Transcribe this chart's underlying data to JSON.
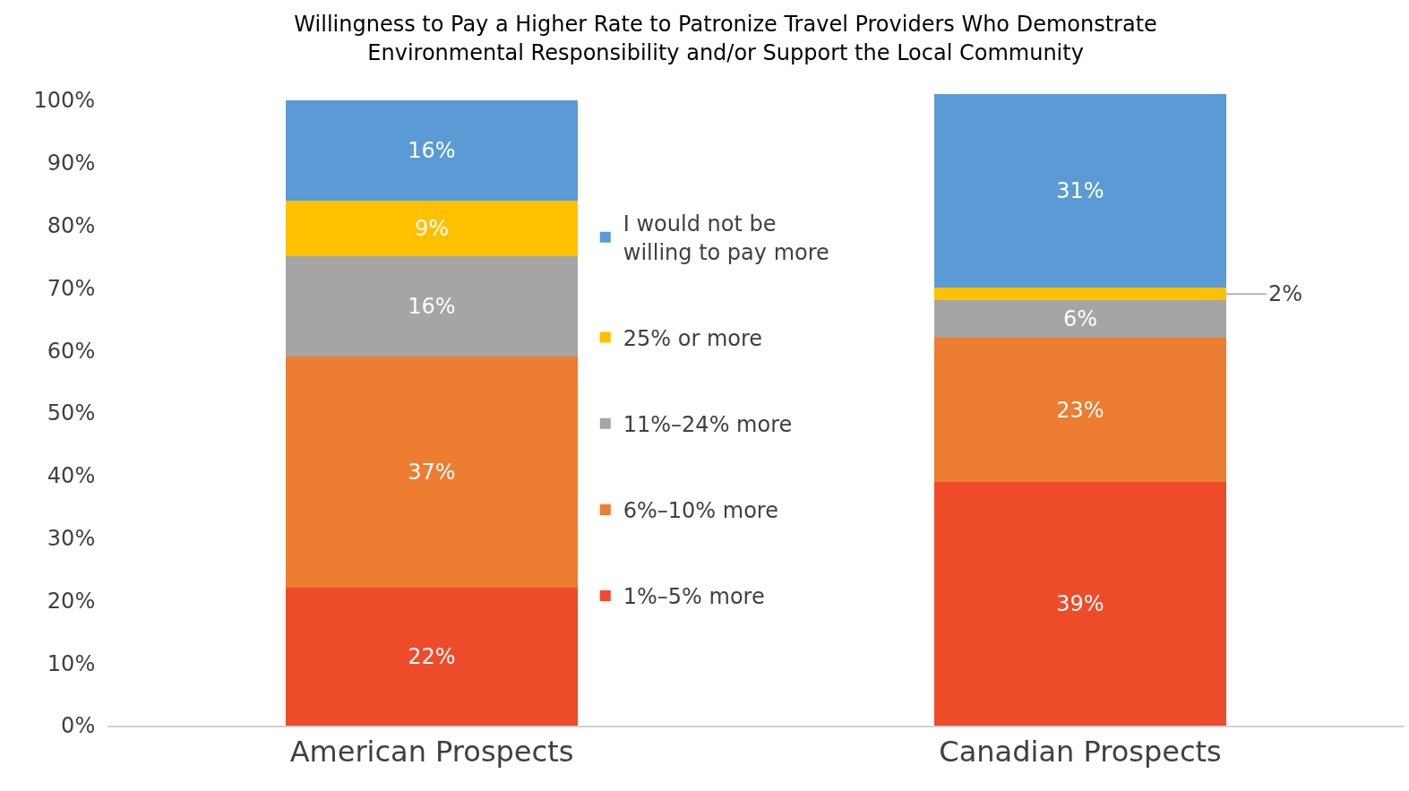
{
  "chart_data": {
    "type": "bar",
    "title": "Willingness to Pay a Higher Rate to Patronize Travel Providers Who Demonstrate Environmental Responsibility and/or Support the Local Community",
    "categories": [
      "American Prospects",
      "Canadian Prospects"
    ],
    "stacked": true,
    "series": [
      {
        "name": "1%–5% more",
        "color": "#ee4b2b",
        "values": [
          22,
          39
        ],
        "value_labels": [
          "22%",
          "39%"
        ]
      },
      {
        "name": "6%–10% more",
        "color": "#ed7d31",
        "values": [
          37,
          23
        ],
        "value_labels": [
          "37%",
          "23%"
        ]
      },
      {
        "name": "11%–24% more",
        "color": "#a5a5a5",
        "values": [
          16,
          6
        ],
        "value_labels": [
          "16%",
          "6%"
        ]
      },
      {
        "name": "25% or more",
        "color": "#ffc000",
        "values": [
          9,
          2
        ],
        "value_labels": [
          "9%",
          "2%"
        ]
      },
      {
        "name": "I would not be willing to pay more",
        "color": "#5b9bd5",
        "values": [
          16,
          31
        ],
        "value_labels": [
          "16%",
          "31%"
        ]
      }
    ],
    "ylim": [
      0,
      101
    ],
    "yticks": [
      {
        "value": 0,
        "label": "0%"
      },
      {
        "value": 10,
        "label": "10%"
      },
      {
        "value": 20,
        "label": "20%"
      },
      {
        "value": 30,
        "label": "30%"
      },
      {
        "value": 40,
        "label": "40%"
      },
      {
        "value": 50,
        "label": "50%"
      },
      {
        "value": 60,
        "label": "60%"
      },
      {
        "value": 70,
        "label": "70%"
      },
      {
        "value": 80,
        "label": "80%"
      },
      {
        "value": 90,
        "label": "90%"
      },
      {
        "value": 100,
        "label": "100%"
      }
    ],
    "grid": false,
    "legend": "center"
  }
}
